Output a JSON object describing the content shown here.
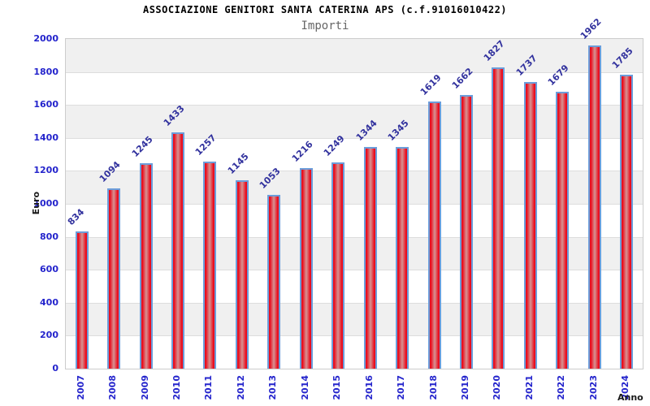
{
  "title": "ASSOCIAZIONE GENITORI SANTA CATERINA APS (c.f.91016010422)",
  "subtitle": "Importi",
  "chart_data": {
    "type": "bar",
    "title": "ASSOCIAZIONE GENITORI SANTA CATERINA APS (c.f.91016010422)",
    "subtitle": "Importi",
    "xlabel": "Anno",
    "ylabel": "Euro",
    "categories": [
      "2007",
      "2008",
      "2009",
      "2010",
      "2011",
      "2012",
      "2013",
      "2014",
      "2015",
      "2016",
      "2017",
      "2018",
      "2019",
      "2020",
      "2021",
      "2022",
      "2023",
      "2024"
    ],
    "values": [
      834,
      1094,
      1245,
      1433,
      1257,
      1145,
      1053,
      1216,
      1249,
      1344,
      1345,
      1619,
      1662,
      1827,
      1737,
      1679,
      1962,
      1785
    ],
    "ylim": [
      0,
      2000
    ],
    "ytick_step": 200,
    "grid": "horizontal-bands",
    "legend": "none",
    "value_labels": "rotated-45-above-bars"
  },
  "colors": {
    "bar_edge": "#ea0c1c",
    "bar_center": "#d69393",
    "bar_border": "#6c9dda",
    "tick_label": "#2424cc",
    "value_label": "#32329e",
    "band_gray": "#f0f0f0",
    "band_white": "#ffffff",
    "grid_line": "#dddddd",
    "plot_frame": "#cccccc",
    "title": "#000000",
    "subtitle": "#666666",
    "axis_title": "#1a1a1a"
  }
}
